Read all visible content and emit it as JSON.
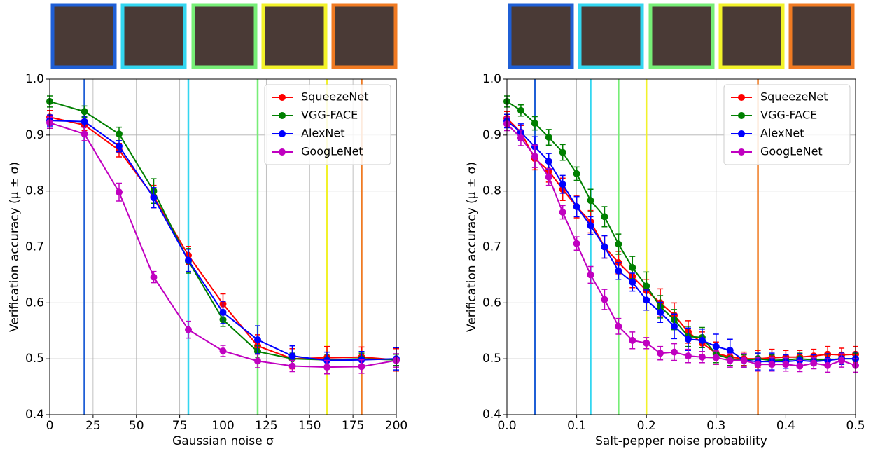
{
  "chart_data": [
    {
      "type": "line",
      "xlabel": "Gaussian noise σ",
      "ylabel": "Verification accuracy (μ ± σ)",
      "x": [
        0,
        20,
        40,
        60,
        80,
        100,
        120,
        140,
        160,
        180,
        200
      ],
      "xlim": [
        0,
        200
      ],
      "xticks": [
        0,
        25,
        50,
        75,
        100,
        125,
        150,
        175,
        200
      ],
      "ylim": [
        0.4,
        1.0
      ],
      "yticks": [
        0.4,
        0.5,
        0.6,
        0.7,
        0.8,
        0.9,
        {
          "value": 1,
          "label": "1.0"
        }
      ],
      "grid": true,
      "legend": "upper right",
      "vlines": [
        {
          "x": 20,
          "color": "#1f5fd6"
        },
        {
          "x": 80,
          "color": "#33d6f0"
        },
        {
          "x": 120,
          "color": "#77ee77"
        },
        {
          "x": 160,
          "color": "#f2f22a"
        },
        {
          "x": 180,
          "color": "#f07a22"
        }
      ],
      "series": [
        {
          "name": "SqueezeNet",
          "color": "#ff0000",
          "values": [
            0.932,
            0.918,
            0.873,
            0.79,
            0.685,
            0.598,
            0.523,
            0.5,
            0.502,
            0.503,
            0.498
          ],
          "errors": [
            0.012,
            0.01,
            0.012,
            0.02,
            0.016,
            0.018,
            0.02,
            0.018,
            0.02,
            0.018,
            0.02
          ]
        },
        {
          "name": "VGG-FACE",
          "color": "#008000",
          "values": [
            0.96,
            0.942,
            0.902,
            0.8,
            0.675,
            0.57,
            0.513,
            0.5,
            0.498,
            0.5,
            0.498
          ],
          "errors": [
            0.01,
            0.01,
            0.012,
            0.022,
            0.022,
            0.012,
            0.01,
            0.01,
            0.01,
            0.01,
            0.01
          ]
        },
        {
          "name": "AlexNet",
          "color": "#0000ff",
          "values": [
            0.926,
            0.924,
            0.88,
            0.788,
            0.676,
            0.583,
            0.534,
            0.505,
            0.497,
            0.498,
            0.5
          ],
          "errors": [
            0.01,
            0.01,
            0.01,
            0.018,
            0.02,
            0.02,
            0.025,
            0.018,
            0.015,
            0.015,
            0.02
          ]
        },
        {
          "name": "GoogLeNet",
          "color": "#c000c0",
          "values": [
            0.922,
            0.902,
            0.798,
            0.646,
            0.552,
            0.514,
            0.496,
            0.487,
            0.485,
            0.486,
            0.497
          ],
          "errors": [
            0.01,
            0.012,
            0.016,
            0.01,
            0.015,
            0.01,
            0.012,
            0.01,
            0.012,
            0.012,
            0.012
          ]
        }
      ]
    },
    {
      "type": "line",
      "xlabel": "Salt-pepper noise probability",
      "ylabel": "Verification accuracy (μ ± σ)",
      "x": [
        0,
        0.02,
        0.04,
        0.06,
        0.08,
        0.1,
        0.12,
        0.14,
        0.16,
        0.18,
        0.2,
        0.22,
        0.24,
        0.26,
        0.28,
        0.3,
        0.32,
        0.34,
        0.36,
        0.38,
        0.4,
        0.42,
        0.44,
        0.46,
        0.48,
        0.5
      ],
      "xlim": [
        0,
        0.5
      ],
      "xticks": [
        {
          "value": 0,
          "label": "0.0"
        },
        0.1,
        0.2,
        0.3,
        0.4,
        0.5
      ],
      "ylim": [
        0.4,
        1.0
      ],
      "yticks": [
        0.4,
        0.5,
        0.6,
        0.7,
        0.8,
        0.9,
        {
          "value": 1,
          "label": "1.0"
        }
      ],
      "grid": true,
      "legend": "upper right",
      "vlines": [
        {
          "x": 0.04,
          "color": "#1f5fd6"
        },
        {
          "x": 0.12,
          "color": "#33d6f0"
        },
        {
          "x": 0.16,
          "color": "#77ee77"
        },
        {
          "x": 0.2,
          "color": "#f2f22a"
        },
        {
          "x": 0.36,
          "color": "#f07a22"
        }
      ],
      "series": [
        {
          "name": "SqueezeNet",
          "color": "#ff0000",
          "values": [
            0.93,
            0.905,
            0.858,
            0.836,
            0.803,
            0.772,
            0.745,
            0.7,
            0.672,
            0.647,
            0.622,
            0.6,
            0.578,
            0.548,
            0.528,
            0.51,
            0.503,
            0.5,
            0.5,
            0.502,
            0.503,
            0.503,
            0.505,
            0.508,
            0.507,
            0.508
          ],
          "errors": [
            0.012,
            0.012,
            0.02,
            0.02,
            0.02,
            0.02,
            0.02,
            0.02,
            0.02,
            0.02,
            0.02,
            0.025,
            0.022,
            0.02,
            0.02,
            0.02,
            0.015,
            0.012,
            0.015,
            0.015,
            0.012,
            0.012,
            0.012,
            0.014,
            0.012,
            0.014
          ]
        },
        {
          "name": "VGG-FACE",
          "color": "#008000",
          "values": [
            0.96,
            0.944,
            0.921,
            0.896,
            0.869,
            0.831,
            0.783,
            0.754,
            0.705,
            0.663,
            0.63,
            0.593,
            0.57,
            0.54,
            0.538,
            0.508,
            0.5,
            0.497,
            0.5,
            0.497,
            0.498,
            0.5,
            0.498,
            0.498,
            0.5,
            0.5
          ],
          "errors": [
            0.01,
            0.01,
            0.012,
            0.014,
            0.014,
            0.012,
            0.02,
            0.018,
            0.018,
            0.02,
            0.025,
            0.02,
            0.018,
            0.018,
            0.018,
            0.015,
            0.012,
            0.01,
            0.01,
            0.01,
            0.01,
            0.01,
            0.01,
            0.01,
            0.01,
            0.01
          ]
        },
        {
          "name": "AlexNet",
          "color": "#0000ff",
          "values": [
            0.925,
            0.905,
            0.879,
            0.853,
            0.812,
            0.772,
            0.738,
            0.7,
            0.657,
            0.637,
            0.605,
            0.583,
            0.558,
            0.535,
            0.533,
            0.522,
            0.515,
            0.497,
            0.495,
            0.495,
            0.495,
            0.497,
            0.495,
            0.497,
            0.5,
            0.5
          ],
          "errors": [
            0.012,
            0.015,
            0.018,
            0.014,
            0.016,
            0.018,
            0.016,
            0.02,
            0.015,
            0.016,
            0.018,
            0.018,
            0.022,
            0.02,
            0.02,
            0.022,
            0.02,
            0.012,
            0.015,
            0.015,
            0.012,
            0.012,
            0.012,
            0.012,
            0.01,
            0.012
          ]
        },
        {
          "name": "GoogLeNet",
          "color": "#c000c0",
          "values": [
            0.92,
            0.895,
            0.862,
            0.825,
            0.762,
            0.706,
            0.65,
            0.606,
            0.558,
            0.533,
            0.528,
            0.51,
            0.512,
            0.505,
            0.503,
            0.502,
            0.497,
            0.497,
            0.49,
            0.49,
            0.49,
            0.487,
            0.492,
            0.488,
            0.497,
            0.488
          ],
          "errors": [
            0.012,
            0.014,
            0.02,
            0.015,
            0.012,
            0.012,
            0.015,
            0.018,
            0.014,
            0.015,
            0.01,
            0.012,
            0.015,
            0.012,
            0.01,
            0.012,
            0.012,
            0.012,
            0.012,
            0.012,
            0.012,
            0.01,
            0.01,
            0.012,
            0.012,
            0.012
          ]
        }
      ]
    }
  ]
}
